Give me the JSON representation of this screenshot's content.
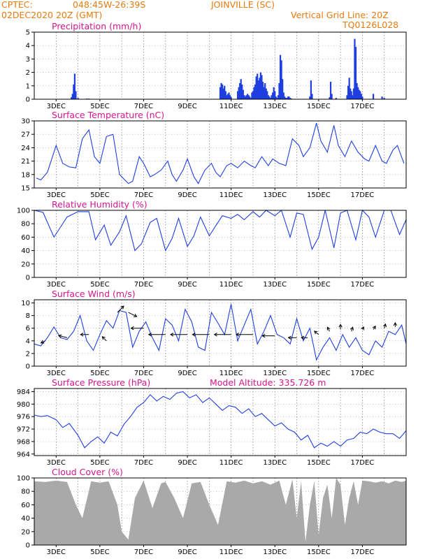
{
  "header": {
    "source": "CPTEC:",
    "coords": "048:45W-26:39S",
    "station": "JOINVILLE (SC)",
    "run": "02DEC2020 20Z (GMT)",
    "grid_note": "Vertical Grid Line: 20Z",
    "model": "TQ0126L028"
  },
  "x_ticks": [
    "3DEC",
    "5DEC",
    "7DEC",
    "9DEC",
    "11DEC",
    "13DEC",
    "15DEC",
    "17DEC"
  ],
  "colors": {
    "series": "#1f3fe0",
    "title": "#d6158c",
    "header": "#e87a10",
    "cloud": "#a9a9a9"
  },
  "chart_data": [
    {
      "id": "precip",
      "type": "bar",
      "title": "Precipitation (mm/h)",
      "extra": "",
      "ylim": [
        0,
        5
      ],
      "yticks": [
        0,
        1,
        2,
        3,
        4,
        5
      ],
      "x": [
        1.7,
        1.75,
        1.8,
        1.85,
        1.9,
        2.0,
        2.4,
        2.5,
        8.5,
        8.55,
        8.6,
        8.65,
        8.7,
        8.75,
        8.8,
        8.85,
        8.9,
        8.95,
        9.0,
        9.3,
        9.35,
        9.4,
        9.45,
        9.5,
        9.55,
        9.6,
        9.65,
        9.7,
        9.75,
        9.8,
        9.85,
        9.9,
        9.95,
        10.0,
        10.05,
        10.1,
        10.15,
        10.2,
        10.25,
        10.3,
        10.35,
        10.4,
        10.45,
        10.5,
        10.55,
        10.6,
        10.65,
        10.7,
        10.75,
        10.8,
        10.85,
        10.9,
        10.95,
        11.0,
        11.05,
        11.1,
        11.15,
        11.2,
        11.25,
        11.3,
        11.35,
        11.4,
        11.45,
        11.5,
        11.55,
        11.6,
        11.65,
        11.7,
        11.75,
        12.6,
        12.65,
        12.7,
        13.5,
        13.55,
        13.6,
        13.8,
        14.3,
        14.35,
        14.4,
        14.45,
        14.5,
        14.55,
        14.6,
        14.65,
        14.7,
        14.75,
        14.8,
        14.85,
        14.9,
        14.95,
        15.0,
        15.5,
        15.9,
        16.0
      ],
      "values": [
        0.15,
        0.4,
        1.1,
        1.9,
        0.6,
        0.1,
        0.05,
        0.05,
        0.9,
        1.2,
        1.1,
        0.8,
        1.0,
        0.6,
        0.3,
        0.4,
        0.5,
        0.3,
        0.15,
        0.6,
        0.9,
        1.2,
        1.5,
        1.1,
        0.7,
        0.3,
        0.2,
        0.3,
        0.4,
        0.3,
        0.2,
        0.1,
        0.5,
        0.6,
        0.9,
        1.1,
        1.7,
        1.9,
        1.4,
        1.6,
        2.0,
        1.8,
        1.3,
        0.9,
        1.2,
        0.8,
        0.6,
        0.3,
        0.2,
        0.1,
        0.3,
        0.5,
        0.9,
        0.6,
        0.2,
        0.1,
        0.3,
        1.2,
        3.3,
        2.9,
        1.5,
        0.5,
        0.2,
        0.1,
        0.1,
        0.2,
        0.2,
        0.1,
        0.05,
        0.2,
        1.4,
        0.4,
        0.15,
        1.3,
        0.4,
        0.1,
        0.3,
        1.0,
        1.6,
        0.8,
        0.6,
        0.3,
        0.8,
        4.5,
        3.9,
        1.2,
        0.9,
        0.7,
        0.6,
        0.4,
        0.2,
        0.4,
        0.2,
        0.1
      ]
    },
    {
      "id": "temp",
      "type": "line",
      "title": "Surface Temperature (nC)",
      "extra": "",
      "ylim": [
        15,
        30
      ],
      "yticks": [
        15,
        18,
        21,
        24,
        27,
        30
      ],
      "x": [
        0.1,
        0.3,
        0.6,
        1.0,
        1.3,
        1.6,
        1.9,
        2.2,
        2.5,
        2.75,
        3.0,
        3.3,
        3.6,
        3.9,
        4.1,
        4.3,
        4.5,
        4.8,
        5.0,
        5.3,
        5.5,
        5.8,
        6.1,
        6.3,
        6.5,
        6.8,
        7.0,
        7.3,
        7.5,
        7.8,
        8.1,
        8.3,
        8.5,
        8.8,
        9.0,
        9.3,
        9.6,
        9.9,
        10.1,
        10.4,
        10.7,
        10.9,
        11.2,
        11.5,
        11.8,
        12.1,
        12.3,
        12.6,
        12.9,
        13.1,
        13.4,
        13.7,
        13.9,
        14.2,
        14.5,
        14.8,
        15.1,
        15.3,
        15.6,
        15.9,
        16.1,
        16.4,
        16.6,
        16.9
      ],
      "values": [
        17.2,
        16.8,
        18.5,
        24.5,
        20.5,
        19.7,
        19.5,
        26.0,
        28.0,
        22.0,
        20.5,
        26.5,
        27.0,
        18.0,
        17.0,
        16.0,
        16.5,
        22.0,
        20.5,
        17.5,
        18.0,
        19.0,
        21.0,
        18.0,
        16.5,
        19.0,
        21.5,
        17.5,
        16.0,
        19.0,
        20.5,
        18.5,
        17.5,
        20.0,
        20.5,
        19.5,
        21.0,
        20.0,
        19.5,
        22.0,
        20.0,
        21.5,
        20.5,
        20.0,
        26.0,
        24.5,
        22.0,
        24.0,
        29.5,
        25.5,
        23.0,
        29.0,
        24.5,
        22.0,
        25.5,
        23.0,
        21.5,
        21.0,
        24.5,
        21.0,
        20.5,
        23.5,
        24.5,
        20.5
      ]
    },
    {
      "id": "rh",
      "type": "line",
      "title": "Relative Humidity (%)",
      "extra": "",
      "ylim": [
        0,
        100
      ],
      "yticks": [
        0,
        20,
        40,
        60,
        80,
        100
      ],
      "x": [
        0.0,
        0.4,
        0.9,
        1.2,
        1.5,
        2.0,
        2.5,
        2.8,
        3.2,
        3.5,
        3.9,
        4.2,
        4.6,
        4.9,
        5.3,
        5.6,
        6.0,
        6.3,
        6.6,
        7.0,
        7.3,
        7.6,
        8.0,
        8.3,
        8.6,
        9.0,
        9.3,
        9.6,
        10.0,
        10.3,
        10.6,
        11.0,
        11.3,
        11.7,
        12.0,
        12.3,
        12.7,
        13.0,
        13.3,
        13.7,
        14.0,
        14.3,
        14.7,
        15.0,
        15.3,
        15.6,
        16.0,
        16.3,
        16.7,
        17.0
      ],
      "values": [
        100,
        97,
        60,
        75,
        90,
        98,
        98,
        56,
        78,
        48,
        68,
        92,
        40,
        50,
        82,
        88,
        40,
        58,
        88,
        46,
        62,
        90,
        62,
        77,
        92,
        88,
        94,
        86,
        98,
        90,
        100,
        92,
        100,
        60,
        96,
        94,
        42,
        60,
        100,
        44,
        96,
        100,
        56,
        100,
        90,
        60,
        100,
        100,
        64,
        86
      ]
    },
    {
      "id": "wind",
      "type": "line",
      "title": "Surface Wind (m/s)",
      "extra": "",
      "ylim": [
        0,
        10.5
      ],
      "yticks": [
        0,
        2,
        4,
        6,
        8,
        10
      ],
      "x": [
        0.0,
        0.3,
        0.6,
        0.9,
        1.2,
        1.5,
        1.8,
        2.1,
        2.4,
        2.7,
        3.0,
        3.3,
        3.6,
        3.9,
        4.2,
        4.5,
        4.8,
        5.1,
        5.4,
        5.7,
        6.0,
        6.3,
        6.6,
        6.9,
        7.2,
        7.5,
        7.8,
        8.1,
        8.4,
        8.7,
        9.0,
        9.3,
        9.6,
        9.9,
        10.2,
        10.5,
        10.8,
        11.1,
        11.4,
        11.7,
        12.0,
        12.3,
        12.6,
        12.9,
        13.2,
        13.5,
        13.8,
        14.1,
        14.4,
        14.7,
        15.0,
        15.3,
        15.6,
        15.9,
        16.2,
        16.5,
        16.8,
        17.0
      ],
      "values": [
        3.5,
        3.2,
        4.5,
        6.2,
        4.5,
        4.2,
        5.5,
        8.0,
        4.0,
        2.5,
        5.0,
        7.2,
        6.0,
        8.8,
        8.5,
        3.0,
        5.5,
        7.0,
        4.5,
        2.5,
        7.5,
        6.5,
        4.0,
        9.0,
        7.0,
        3.0,
        2.5,
        8.5,
        6.8,
        5.0,
        9.8,
        4.0,
        6.5,
        9.0,
        3.5,
        5.5,
        8.0,
        5.0,
        4.5,
        3.5,
        7.5,
        4.0,
        6.0,
        1.0,
        3.0,
        4.5,
        2.5,
        5.0,
        3.0,
        4.5,
        2.5,
        1.8,
        4.0,
        3.0,
        5.5,
        5.0,
        6.5,
        3.5
      ],
      "arrows": {
        "x": [
          0.5,
          1.5,
          2.5,
          3.3,
          3.8,
          4.3,
          5.0,
          6.0,
          7.0,
          8.0,
          9.0,
          10.0,
          11.0,
          12.0,
          12.5,
          13.0,
          13.5,
          14.0,
          14.5,
          15.0,
          15.5,
          16.0,
          16.5
        ],
        "u": [
          -1,
          -2,
          -2,
          -1,
          1.5,
          2,
          -3,
          -4,
          -4,
          -4,
          -4,
          -4,
          -3,
          -2,
          -1.5,
          -1,
          -0.5,
          0,
          0.3,
          0.3,
          0.5,
          0.3,
          0
        ],
        "v": [
          -0.5,
          0.5,
          0,
          1,
          1.5,
          -1,
          0,
          0,
          0,
          0,
          0,
          0,
          0,
          0,
          0,
          0.8,
          1,
          1.2,
          1,
          0.6,
          0.8,
          1,
          1
        ],
        "y": [
          4,
          4.5,
          5,
          4,
          8.5,
          8.5,
          6,
          5,
          5,
          5,
          5,
          5,
          4.8,
          4.5,
          4.5,
          5,
          5.5,
          5.8,
          5.5,
          5.8,
          5.8,
          6,
          6.2
        ]
      }
    },
    {
      "id": "press",
      "type": "line",
      "title": "Surface Pressure (hPa)",
      "extra": "Model Altitude: 335.726 m",
      "ylim": [
        963.5,
        985
      ],
      "yticks": [
        964,
        968,
        972,
        976,
        980,
        984
      ],
      "x": [
        0.0,
        0.3,
        0.6,
        1.0,
        1.3,
        1.6,
        2.0,
        2.3,
        2.6,
        2.9,
        3.2,
        3.5,
        3.8,
        4.1,
        4.4,
        4.7,
        5.0,
        5.3,
        5.6,
        5.9,
        6.2,
        6.5,
        6.8,
        7.1,
        7.4,
        7.7,
        8.0,
        8.3,
        8.6,
        8.9,
        9.2,
        9.5,
        9.8,
        10.1,
        10.4,
        10.7,
        11.0,
        11.3,
        11.6,
        11.9,
        12.2,
        12.5,
        12.8,
        13.1,
        13.4,
        13.7,
        14.0,
        14.3,
        14.6,
        14.9,
        15.2,
        15.5,
        15.8,
        16.1,
        16.4,
        16.7,
        17.0
      ],
      "values": [
        976.5,
        976.0,
        976.3,
        975.0,
        972.5,
        973.8,
        970.0,
        966.0,
        968.0,
        969.5,
        967.5,
        971.0,
        969.8,
        973.5,
        976.0,
        979.0,
        980.5,
        983.0,
        981.0,
        982.5,
        981.5,
        983.5,
        984.0,
        982.0,
        983.0,
        980.5,
        982.0,
        980.0,
        978.0,
        979.5,
        979.0,
        977.0,
        978.5,
        976.0,
        977.0,
        975.0,
        973.0,
        974.0,
        972.0,
        971.0,
        968.5,
        970.0,
        966.0,
        967.5,
        966.5,
        968.0,
        966.5,
        968.5,
        969.0,
        971.0,
        970.5,
        972.0,
        971.0,
        970.5,
        970.5,
        969.0,
        971.5
      ]
    },
    {
      "id": "cloud",
      "type": "area",
      "title": "Cloud Cover (%)",
      "extra": "",
      "ylim": [
        0,
        100
      ],
      "yticks": [
        0,
        20,
        40,
        60,
        80,
        100
      ],
      "x": [
        0.0,
        0.5,
        1.0,
        1.5,
        1.9,
        2.2,
        2.6,
        3.0,
        3.4,
        3.8,
        4.0,
        4.3,
        4.6,
        5.0,
        5.4,
        5.8,
        6.0,
        6.4,
        6.8,
        7.2,
        7.6,
        8.0,
        8.4,
        8.8,
        9.2,
        9.6,
        10.0,
        10.4,
        10.8,
        11.2,
        11.5,
        11.8,
        12.0,
        12.2,
        12.4,
        12.6,
        12.8,
        13.0,
        13.2,
        13.4,
        13.6,
        13.8,
        14.0,
        14.2,
        14.4,
        14.6,
        14.8,
        15.0,
        15.3,
        15.6,
        15.9,
        16.2,
        16.5,
        16.8,
        17.0
      ],
      "values": [
        95,
        94,
        96,
        94,
        60,
        40,
        95,
        93,
        95,
        60,
        20,
        8,
        70,
        96,
        55,
        92,
        94,
        70,
        40,
        92,
        94,
        60,
        30,
        95,
        93,
        96,
        92,
        95,
        90,
        96,
        60,
        98,
        40,
        95,
        5,
        60,
        95,
        15,
        70,
        90,
        40,
        100,
        90,
        30,
        70,
        95,
        60,
        96,
        95,
        93,
        95,
        92,
        96,
        94,
        96
      ]
    }
  ]
}
